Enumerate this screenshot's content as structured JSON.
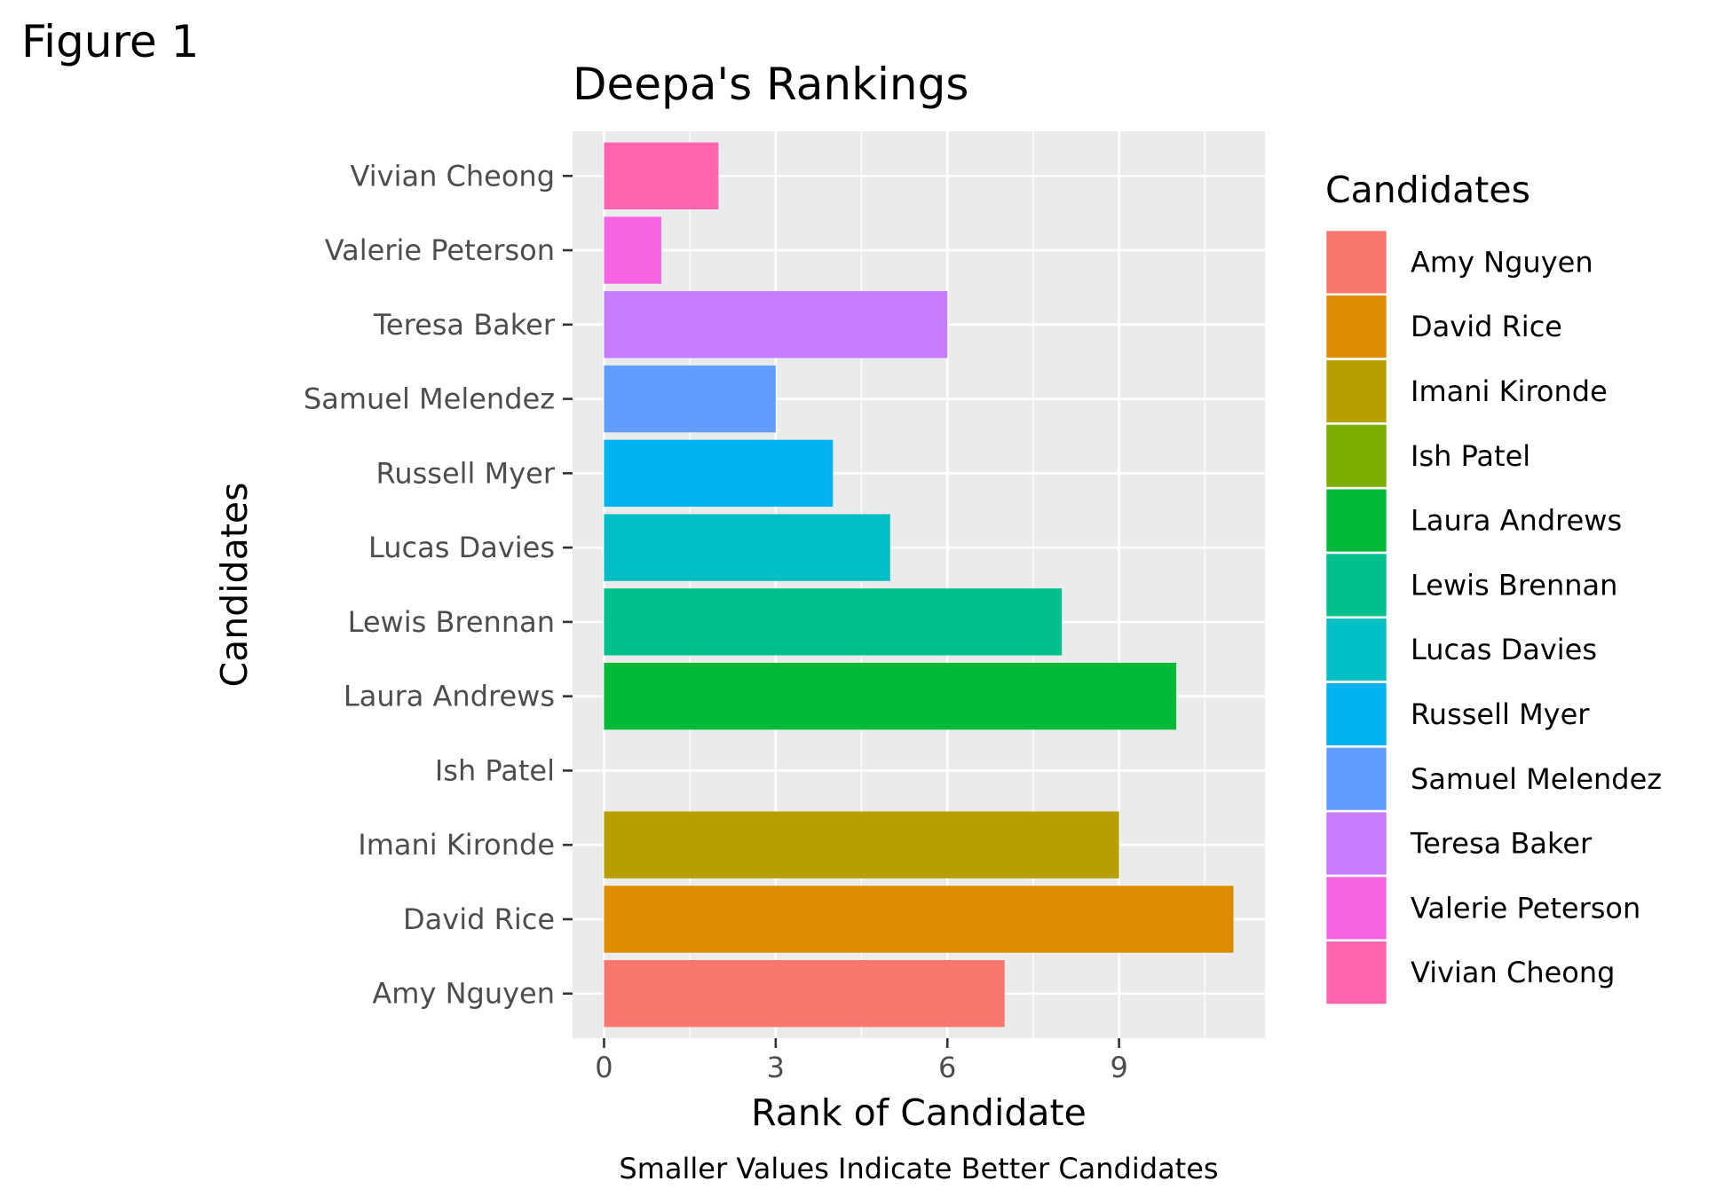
{
  "figure_label": "Figure 1",
  "chart_data": {
    "type": "bar",
    "orientation": "horizontal",
    "title": "Deepa's Rankings",
    "xlabel": "Rank of Candidate",
    "caption": "Smaller Values Indicate Better Candidates",
    "ylabel": "Candidates",
    "xlim": [
      -0.55,
      11.55
    ],
    "xticks": [
      0,
      3,
      6,
      9
    ],
    "grid": true,
    "legend": {
      "title": "Candidates",
      "placement": "right"
    },
    "categories": [
      "Amy Nguyen",
      "David Rice",
      "Imani Kironde",
      "Ish Patel",
      "Laura Andrews",
      "Lewis Brennan",
      "Lucas Davies",
      "Russell Myer",
      "Samuel Melendez",
      "Teresa Baker",
      "Valerie Peterson",
      "Vivian Cheong"
    ],
    "values": [
      7,
      11,
      9,
      0,
      10,
      8,
      5,
      4,
      3,
      6,
      1,
      2
    ],
    "colors": [
      "#F8766D",
      "#DE8C00",
      "#B79F00",
      "#7CAE00",
      "#00BA38",
      "#00C08B",
      "#00BFC4",
      "#00B4F0",
      "#619CFF",
      "#C77CFF",
      "#F564E3",
      "#FF64B0"
    ]
  }
}
